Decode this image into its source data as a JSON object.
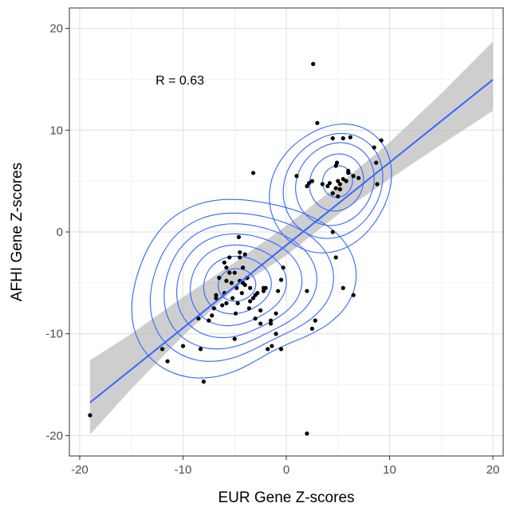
{
  "chart_data": {
    "type": "scatter",
    "xlabel": "EUR Gene Z-scores",
    "ylabel": "AFHI Gene Z-scores",
    "xlim": [
      -21,
      21
    ],
    "ylim": [
      -22,
      22
    ],
    "x_ticks": [
      -20,
      -10,
      0,
      10,
      20
    ],
    "y_ticks": [
      -20,
      -10,
      0,
      10,
      20
    ],
    "x_tick_labels": [
      "-20",
      "-10",
      "0",
      "10",
      "20"
    ],
    "y_tick_labels": [
      "-20",
      "-10",
      "0",
      "10",
      "20"
    ],
    "grid": true,
    "annotation": {
      "text": "R = 0.63",
      "x": -10.3,
      "y": 14.8
    },
    "regression": {
      "slope": 0.813,
      "intercept": -1.3,
      "x_range": [
        -19,
        20
      ],
      "ci_band": [
        {
          "x": -19,
          "lo": -19.9,
          "hi": -12.6
        },
        {
          "x": -15,
          "lo": -15.4,
          "hi": -10.0
        },
        {
          "x": -10,
          "lo": -10.2,
          "hi": -6.4
        },
        {
          "x": -5,
          "lo": -5.6,
          "hi": -3.0
        },
        {
          "x": 0,
          "lo": -2.3,
          "hi": 0.6
        },
        {
          "x": 5,
          "lo": 1.7,
          "hi": 4.6
        },
        {
          "x": 10,
          "lo": 5.2,
          "hi": 8.8
        },
        {
          "x": 15,
          "lo": 8.6,
          "hi": 13.6
        },
        {
          "x": 20,
          "lo": 11.9,
          "hi": 18.7
        }
      ]
    },
    "points": {
      "x": [
        -19,
        -12,
        -11.5,
        -10,
        -8.5,
        -8,
        -7.5,
        -7,
        -6.8,
        -6.5,
        -6.2,
        -6,
        -5.8,
        -5.5,
        -5.3,
        -5.2,
        -5,
        -4.9,
        -4.8,
        -4.7,
        -4.5,
        -4.3,
        -4.2,
        -4,
        -3.8,
        -3.6,
        -3.5,
        -3.2,
        -3,
        -2.8,
        -2.5,
        -2.2,
        -2,
        -1.8,
        -1.5,
        -1,
        -0.8,
        -0.5,
        -0.3,
        -4.5,
        -5.5,
        -6,
        -4,
        -3.5,
        -2.5,
        -5,
        -6.8,
        -7.2,
        -5.8,
        -4.6,
        -4.5,
        -4.2,
        -3,
        -2.2,
        -1.4,
        -1,
        -0.5,
        1,
        2,
        2.2,
        2.5,
        3,
        3.5,
        4,
        4.5,
        4.8,
        5,
        5.2,
        5.5,
        5.8,
        6,
        6.2,
        6.5,
        7,
        8.5,
        8.7,
        8.8,
        9.2,
        5,
        5.5,
        4.5,
        6,
        5.2,
        4.9,
        6.5,
        2,
        2.5,
        2.8,
        -8.3,
        -5.8,
        -1.5,
        2,
        4.8,
        5.5,
        4.5,
        2.6,
        4.2,
        4.8,
        -3.2
      ],
      "y": [
        -18,
        -11.5,
        -12.7,
        -11.2,
        -8.5,
        -14.7,
        -8.7,
        -7.5,
        -6.5,
        -4.5,
        -7.2,
        -6,
        -3.5,
        -2.5,
        -5,
        -6.5,
        -4,
        -8,
        -5.5,
        -7,
        -4.8,
        -6,
        -5,
        -5.2,
        -4.5,
        -7.5,
        -5.5,
        -6.5,
        -6.2,
        -6,
        -9,
        -5.8,
        -5.5,
        -11.5,
        -8.7,
        -8,
        -5.8,
        -4.7,
        -3.5,
        -2,
        -4,
        -3,
        -2.2,
        -6.8,
        -7.7,
        -10.5,
        -6.2,
        -8.2,
        -4.8,
        -0.5,
        -2.5,
        -3.5,
        -8.5,
        -5.5,
        -11.2,
        -10,
        -11.5,
        5.5,
        4.5,
        4.8,
        5,
        10.7,
        4.7,
        4.5,
        9.2,
        6.5,
        5,
        4.7,
        9.2,
        5,
        6,
        9.3,
        5.5,
        5.3,
        8.3,
        6.8,
        4.7,
        9.0,
        3.5,
        5.2,
        3.8,
        5.8,
        4.2,
        6.8,
        -6.2,
        -5.8,
        -9.5,
        -8.7,
        -11.5,
        -7,
        -9,
        -19.8,
        -2.5,
        -5.5,
        0,
        16.5,
        4.8,
        4.3,
        5.8
      ]
    }
  }
}
